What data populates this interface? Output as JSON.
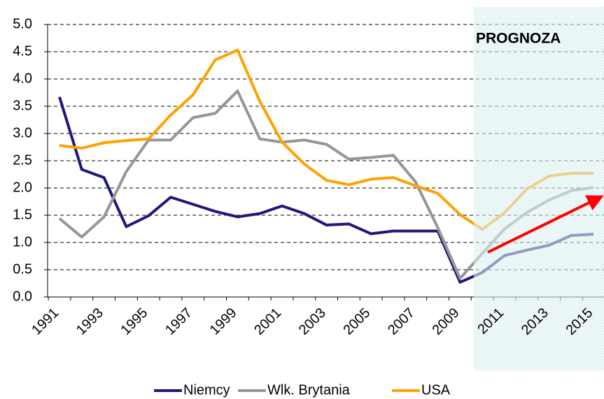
{
  "chart_data": {
    "type": "line",
    "annotations": [
      "PROGNOZA"
    ],
    "categories": [
      "1991",
      null,
      "1993",
      null,
      "1995",
      null,
      "1997",
      null,
      "1999",
      null,
      "2001",
      null,
      "2003",
      null,
      "2005",
      null,
      "2007",
      null,
      "2009",
      null,
      "2011",
      null,
      "2013",
      null,
      "2015"
    ],
    "series": [
      {
        "name": "Niemcy",
        "color": "#1f1a7a",
        "values": [
          3.67,
          2.34,
          2.19,
          1.29,
          1.49,
          1.83,
          1.7,
          1.57,
          1.47,
          1.53,
          1.67,
          1.53,
          1.32,
          1.34,
          1.16,
          1.21,
          1.21,
          1.21,
          0.27,
          0.45,
          0.76,
          0.86,
          0.95,
          1.13,
          1.15
        ]
      },
      {
        "name": "Wlk. Brytania",
        "color": "#969696",
        "values": [
          1.44,
          1.1,
          1.47,
          2.3,
          2.88,
          2.88,
          3.29,
          3.37,
          3.78,
          2.9,
          2.84,
          2.88,
          2.8,
          2.53,
          2.56,
          2.6,
          2.11,
          1.27,
          0.34,
          0.8,
          1.25,
          1.55,
          1.78,
          1.95,
          2.01
        ]
      },
      {
        "name": "USA",
        "color": "#ffa200",
        "values": [
          2.78,
          2.73,
          2.83,
          2.87,
          2.9,
          3.34,
          3.71,
          4.35,
          4.53,
          3.59,
          2.84,
          2.44,
          2.14,
          2.06,
          2.16,
          2.19,
          2.04,
          1.9,
          1.51,
          1.24,
          1.55,
          1.98,
          2.22,
          2.27,
          2.27
        ]
      }
    ],
    "ylim": [
      0,
      5
    ],
    "yticks": [
      {
        "value": 0,
        "label": "0.0"
      },
      {
        "value": 0.5,
        "label": "0.5"
      },
      {
        "value": 1,
        "label": "1.0"
      },
      {
        "value": 1.5,
        "label": "1.5"
      },
      {
        "value": 2,
        "label": "2.0"
      },
      {
        "value": 2.5,
        "label": "2.5"
      },
      {
        "value": 3,
        "label": "3.0"
      },
      {
        "value": 3.5,
        "label": "3.5"
      },
      {
        "value": 4,
        "label": "4.0"
      },
      {
        "value": 4.5,
        "label": "4.5"
      },
      {
        "value": 5,
        "label": "5.0"
      }
    ],
    "grid": true
  }
}
